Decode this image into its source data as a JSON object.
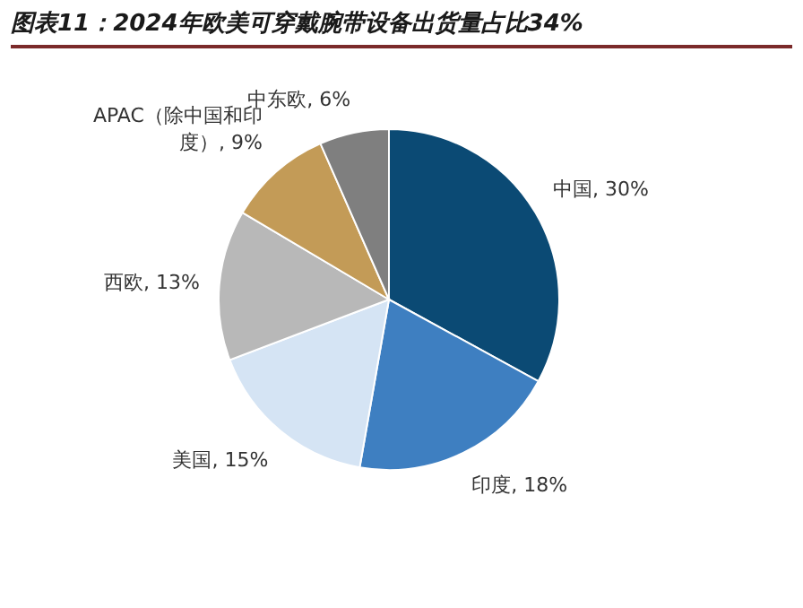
{
  "chart_data": {
    "type": "pie",
    "title": "图表11：2024年欧美可穿戴腕带设备出货量占比34%",
    "categories": [
      "中国",
      "印度",
      "美国",
      "西欧",
      "APAC（除中国和印度）",
      "中东欧"
    ],
    "values": [
      30,
      18,
      15,
      13,
      9,
      6
    ],
    "value_labels": [
      "30%",
      "18%",
      "15%",
      "13%",
      "9%",
      "6%"
    ],
    "colors": [
      "#0b4a74",
      "#3e7fc1",
      "#d5e4f4",
      "#b8b8b8",
      "#c39b57",
      "#7f7f7f"
    ],
    "legend": false
  }
}
